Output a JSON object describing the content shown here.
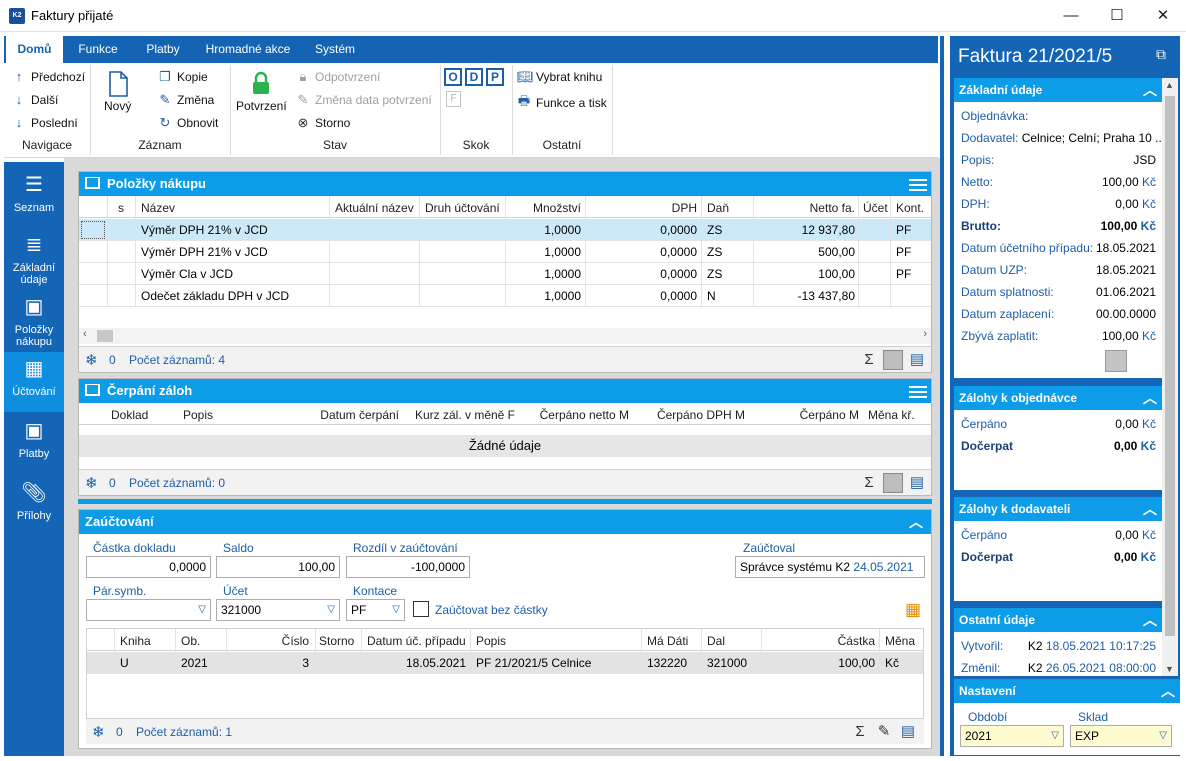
{
  "window": {
    "title": "Faktury přijaté",
    "icon_text": "K2",
    "minimize": "—",
    "maximize": "☐",
    "close": "✕"
  },
  "tabs": [
    "Domů",
    "Funkce",
    "Platby",
    "Hromadné akce",
    "Systém"
  ],
  "ribbon": {
    "navigation": {
      "items": [
        "Předchozí",
        "Další",
        "Poslední"
      ],
      "group": "Navigace"
    },
    "record": {
      "new": "Nový",
      "copy": "Kopie",
      "change": "Změna",
      "refresh": "Obnovit",
      "group": "Záznam"
    },
    "state": {
      "confirm": "Potvrzení",
      "unconfirm": "Odpotvrzení",
      "change_date": "Změna data potvrzení",
      "cancel": "Storno",
      "group": "Stav"
    },
    "jump": {
      "buttons": [
        "O",
        "D",
        "P"
      ],
      "f": "F",
      "group": "Skok"
    },
    "other": {
      "book": "Vybrat knihu",
      "print": "Funkce a tisk",
      "group": "Ostatní"
    }
  },
  "sidebar": [
    {
      "label": "Seznam",
      "icon": "list-icon"
    },
    {
      "label": "Základní údaje",
      "icon": "details-icon"
    },
    {
      "label": "Položky nákupu",
      "icon": "box-icon"
    },
    {
      "label": "Účtování",
      "icon": "calculator-icon"
    },
    {
      "label": "Platby",
      "icon": "box-icon"
    },
    {
      "label": "Přílohy",
      "icon": "paperclip-icon"
    }
  ],
  "items_panel": {
    "title": "Položky nákupu",
    "columns": [
      "s",
      "Název",
      "Aktuální název",
      "Druh účtování",
      "Množství",
      "DPH",
      "Daň",
      "Netto fa.",
      "Účet",
      "Kont."
    ],
    "rows": [
      {
        "name": "Výměr DPH  21% v JCD",
        "qty": "1,0000",
        "vat": "0,0000",
        "tax": "ZS",
        "netto": "12 937,80",
        "kont": "PF"
      },
      {
        "name": "Výměr DPH  21% v JCD",
        "qty": "1,0000",
        "vat": "0,0000",
        "tax": "ZS",
        "netto": "500,00",
        "kont": "PF"
      },
      {
        "name": "Výměr Cla v JCD",
        "qty": "1,0000",
        "vat": "0,0000",
        "tax": "ZS",
        "netto": "100,00",
        "kont": "PF"
      },
      {
        "name": "Odečet základu DPH v JCD",
        "qty": "1,0000",
        "vat": "0,0000",
        "tax": "N",
        "netto": "-13 437,80",
        "kont": ""
      }
    ],
    "footer_zero": "0",
    "footer_count": "Počet záznamů: 4"
  },
  "advances_panel": {
    "title": "Čerpání záloh",
    "columns": [
      "Doklad",
      "Popis",
      "Datum čerpání",
      "Kurz zál. v měně F",
      "Čerpáno netto M",
      "Čerpáno DPH M",
      "Čerpáno M",
      "Měna kř."
    ],
    "empty": "Žádné údaje",
    "footer_zero": "0",
    "footer_count": "Počet záznamů: 0"
  },
  "posting_panel": {
    "title": "Zaúčtování",
    "labels": {
      "amount": "Částka dokladu",
      "saldo": "Saldo",
      "diff": "Rozdíl v zaúčtování",
      "posted": "Zaúčtoval",
      "pair": "Pár.symb.",
      "account": "Účet",
      "contact": "Kontace",
      "no_amount": "Zaúčtovat bez částky"
    },
    "values": {
      "amount": "0,0000",
      "saldo": "100,00",
      "diff": "-100,0000",
      "posted_by": "Správce systému K2",
      "posted_date": "24.05.2021",
      "pair": "",
      "account": "321000",
      "contact": "PF"
    },
    "columns": [
      "Kniha",
      "Ob.",
      "Číslo",
      "Storno",
      "Datum úč. případu",
      "Popis",
      "Má Dáti",
      "Dal",
      "Částka",
      "Měna"
    ],
    "rows": [
      {
        "book": "U",
        "ob": "2021",
        "num": "3",
        "storno": "",
        "date": "18.05.2021",
        "desc": "PF 21/2021/5 Celnice",
        "md": "132220",
        "dal": "321000",
        "amount": "100,00",
        "cur": "Kč"
      }
    ],
    "footer_zero": "0",
    "footer_count": "Počet záznamů: 1"
  },
  "right": {
    "title": "Faktura 21/2021/5",
    "basic": {
      "header": "Základní údaje",
      "rows": [
        {
          "label": "Objednávka:",
          "value": ""
        },
        {
          "label": "Dodavatel:",
          "value": "Celnice; Celní; Praha 10 ..."
        },
        {
          "label": "Popis:",
          "value": "JSD"
        },
        {
          "label": "Netto:",
          "value": "100,00",
          "cur": "Kč"
        },
        {
          "label": "DPH:",
          "value": "0,00",
          "cur": "Kč"
        },
        {
          "label": "Brutto:",
          "value": "100,00",
          "cur": "Kč"
        },
        {
          "label": "Datum účetního případu:",
          "value": "18.05.2021"
        },
        {
          "label": "Datum UZP:",
          "value": "18.05.2021"
        },
        {
          "label": "Datum splatnosti:",
          "value": "01.06.2021"
        },
        {
          "label": "Datum zaplacení:",
          "value": "00.00.0000"
        },
        {
          "label": "Zbývá zaplatit:",
          "value": "100,00",
          "cur": "Kč"
        }
      ]
    },
    "adv_order": {
      "header": "Zálohy k objednávce",
      "drawn_label": "Čerpáno",
      "drawn": "0,00",
      "remain_label": "Dočerpat",
      "remain": "0,00",
      "cur": "Kč"
    },
    "adv_supplier": {
      "header": "Zálohy k dodavateli",
      "drawn_label": "Čerpáno",
      "drawn": "0,00",
      "remain_label": "Dočerpat",
      "remain": "0,00",
      "cur": "Kč"
    },
    "other": {
      "header": "Ostatní údaje",
      "created_label": "Vytvořil:",
      "created_user": "K2",
      "created": "18.05.2021 10:17:25",
      "changed_label": "Změnil:",
      "changed_user": "K2",
      "changed": "26.05.2021 08:00:00"
    },
    "settings": {
      "header": "Nastavení",
      "period_label": "Období",
      "period": "2021",
      "stock_label": "Sklad",
      "stock": "EXP"
    }
  },
  "colors": {
    "blue": "#1564b4",
    "accent": "#0d9ce8",
    "selected": "#cce9fa"
  }
}
